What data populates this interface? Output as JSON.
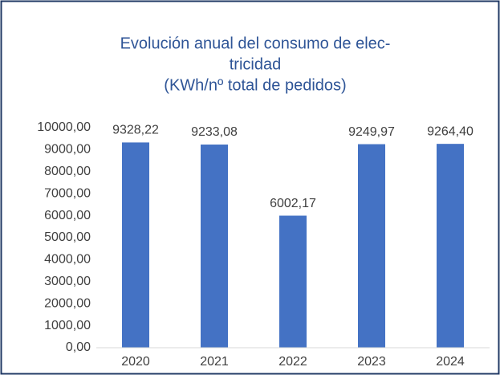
{
  "chart_data": {
    "type": "bar",
    "title": [
      "Evolución anual del consumo de elec-",
      "tricidad",
      "(KWh/nº total de pedidos)"
    ],
    "categories": [
      "2020",
      "2021",
      "2022",
      "2023",
      "2024"
    ],
    "values": [
      9328.22,
      9233.08,
      6002.17,
      9249.97,
      9264.4
    ],
    "value_labels": [
      "9328,22",
      "9233,08",
      "6002,17",
      "9249,97",
      "9264,40"
    ],
    "color": "#4472c4",
    "ylim": [
      0,
      10000
    ],
    "yticks": [
      {
        "value": 0,
        "label": "0,00"
      },
      {
        "value": 1000,
        "label": "1000,00"
      },
      {
        "value": 2000,
        "label": "2000,00"
      },
      {
        "value": 3000,
        "label": "3000,00"
      },
      {
        "value": 4000,
        "label": "4000,00"
      },
      {
        "value": 5000,
        "label": "5000,00"
      },
      {
        "value": 6000,
        "label": "6000,00"
      },
      {
        "value": 7000,
        "label": "7000,00"
      },
      {
        "value": 8000,
        "label": "8000,00"
      },
      {
        "value": 9000,
        "label": "9000,00"
      },
      {
        "value": 10000,
        "label": "10000,00"
      }
    ],
    "grid": false
  }
}
